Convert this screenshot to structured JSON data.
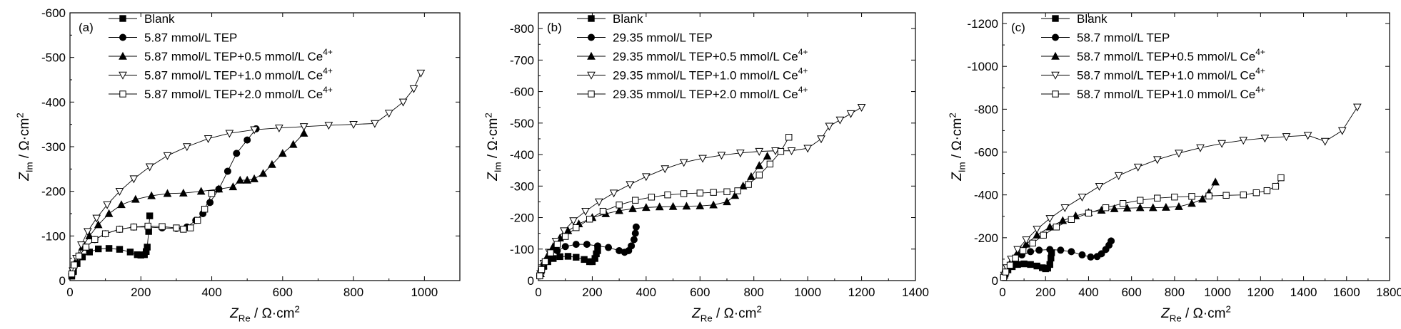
{
  "figure": {
    "panel_count": 3
  },
  "chart_data": [
    {
      "type": "scatter",
      "panel_label": "(a)",
      "xlabel": "Z",
      "xlabel_sub": "Re",
      "xlabel_unit": " / Ω·cm",
      "xlabel_sup": "2",
      "ylabel": "Z",
      "ylabel_sub": "Im",
      "ylabel_unit": " / Ω·cm",
      "ylabel_sup": "2",
      "xlim": [
        0,
        1100
      ],
      "ylim": [
        0,
        -600
      ],
      "xticks": [
        0,
        200,
        400,
        600,
        800,
        1000
      ],
      "yticks": [
        0,
        -100,
        -200,
        -300,
        -400,
        -500,
        -600
      ],
      "xtick_labels": [
        "0",
        "200",
        "400",
        "600",
        "800",
        "1000"
      ],
      "ytick_labels": [
        "0",
        "-100",
        "-200",
        "-300",
        "-400",
        "-500",
        "-600"
      ],
      "legend_position": "top-left",
      "series": [
        {
          "name": "Blank",
          "suffix_sup": "",
          "marker": "square-filled",
          "x": [
            5,
            10,
            20,
            35,
            55,
            80,
            110,
            140,
            170,
            190,
            200,
            210,
            215,
            218,
            222,
            225
          ],
          "y": [
            -10,
            -22,
            -38,
            -53,
            -64,
            -71,
            -72,
            -70,
            -64,
            -58,
            -57,
            -58,
            -65,
            -75,
            -110,
            -145
          ]
        },
        {
          "name": "5.87 mmol/L TEP",
          "suffix_sup": "",
          "marker": "circle-filled",
          "x": [
            5,
            12,
            25,
            45,
            70,
            100,
            140,
            180,
            220,
            260,
            300,
            330,
            355,
            375,
            395,
            420,
            445,
            470,
            500,
            525
          ],
          "y": [
            -15,
            -35,
            -55,
            -75,
            -92,
            -105,
            -115,
            -120,
            -120,
            -118,
            -117,
            -120,
            -135,
            -150,
            -175,
            -205,
            -245,
            -285,
            -315,
            -340
          ]
        },
        {
          "name": "5.87 mmol/L TEP+0.5 mmol/L Ce",
          "suffix_sup": "4+",
          "marker": "triangle-filled",
          "x": [
            8,
            18,
            35,
            55,
            80,
            110,
            145,
            185,
            230,
            275,
            320,
            370,
            420,
            460,
            480,
            500,
            520,
            545,
            570,
            600,
            630,
            660
          ],
          "y": [
            -20,
            -45,
            -75,
            -100,
            -125,
            -150,
            -170,
            -182,
            -190,
            -195,
            -196,
            -200,
            -205,
            -210,
            -225,
            -225,
            -228,
            -240,
            -260,
            -285,
            -305,
            -330
          ]
        },
        {
          "name": "5.87 mmol/L TEP+1.0 mmol/L Ce",
          "suffix_sup": "4+",
          "marker": "triangle-open",
          "x": [
            8,
            18,
            32,
            50,
            75,
            105,
            140,
            180,
            225,
            275,
            330,
            390,
            450,
            520,
            590,
            660,
            730,
            800,
            860,
            900,
            940,
            970,
            990
          ],
          "y": [
            -22,
            -50,
            -80,
            -110,
            -140,
            -170,
            -200,
            -228,
            -255,
            -280,
            -300,
            -318,
            -330,
            -338,
            -342,
            -345,
            -348,
            -350,
            -352,
            -375,
            -400,
            -430,
            -465
          ]
        },
        {
          "name": "5.87 mmol/L TEP+2.0 mmol/L Ce",
          "suffix_sup": "4+",
          "marker": "square-open",
          "x": [
            5,
            12,
            25,
            45,
            70,
            100,
            140,
            180,
            220,
            260,
            300,
            320,
            340,
            360,
            380,
            400
          ],
          "y": [
            -15,
            -35,
            -55,
            -75,
            -92,
            -105,
            -115,
            -120,
            -122,
            -121,
            -118,
            -115,
            -118,
            -135,
            -160,
            -195
          ]
        }
      ]
    },
    {
      "type": "scatter",
      "panel_label": "(b)",
      "xlabel": "Z",
      "xlabel_sub": "Re",
      "xlabel_unit": " / Ω·cm",
      "xlabel_sup": "2",
      "ylabel": "Z",
      "ylabel_sub": "Im",
      "ylabel_unit": " / Ω·cm",
      "ylabel_sup": "2",
      "xlim": [
        0,
        1400
      ],
      "ylim": [
        0,
        -850
      ],
      "xticks": [
        0,
        200,
        400,
        600,
        800,
        1000,
        1200,
        1400
      ],
      "yticks": [
        0,
        -100,
        -200,
        -300,
        -400,
        -500,
        -600,
        -700,
        -800
      ],
      "xtick_labels": [
        "0",
        "200",
        "400",
        "600",
        "800",
        "1000",
        "1200",
        "1400"
      ],
      "ytick_labels": [
        "0",
        "-100",
        "-200",
        "-300",
        "-400",
        "-500",
        "-600",
        "-700",
        "-800"
      ],
      "legend_position": "top-left",
      "series": [
        {
          "name": "Blank",
          "suffix_sup": "",
          "marker": "square-filled",
          "x": [
            5,
            10,
            20,
            35,
            55,
            80,
            110,
            140,
            170,
            190,
            200,
            210,
            215,
            220
          ],
          "y": [
            -15,
            -30,
            -45,
            -60,
            -70,
            -76,
            -77,
            -74,
            -67,
            -60,
            -60,
            -70,
            -85,
            -95
          ]
        },
        {
          "name": "29.35 mmol/L TEP",
          "suffix_sup": "",
          "marker": "circle-filled",
          "x": [
            5,
            12,
            25,
            45,
            70,
            100,
            140,
            180,
            220,
            260,
            300,
            320,
            335,
            345,
            355,
            360,
            363
          ],
          "y": [
            -15,
            -35,
            -60,
            -80,
            -95,
            -108,
            -115,
            -115,
            -110,
            -105,
            -95,
            -90,
            -95,
            -110,
            -130,
            -150,
            -170
          ]
        },
        {
          "name": "29.35 mmol/L TEP+0.5 mmol/L Ce",
          "suffix_sup": "4+",
          "marker": "triangle-filled",
          "x": [
            8,
            18,
            35,
            55,
            80,
            110,
            150,
            200,
            250,
            300,
            350,
            400,
            450,
            500,
            550,
            600,
            650,
            700,
            730,
            760,
            790,
            820,
            850
          ],
          "y": [
            -22,
            -48,
            -80,
            -108,
            -135,
            -158,
            -180,
            -200,
            -212,
            -222,
            -228,
            -232,
            -234,
            -235,
            -236,
            -237,
            -240,
            -250,
            -270,
            -300,
            -330,
            -365,
            -395
          ]
        },
        {
          "name": "29.35 mmol/L TEP+1.0 mmol/L Ce",
          "suffix_sup": "4+",
          "marker": "triangle-open",
          "x": [
            8,
            20,
            40,
            65,
            95,
            130,
            175,
            225,
            280,
            340,
            400,
            470,
            540,
            610,
            680,
            750,
            820,
            880,
            940,
            1000,
            1050,
            1080,
            1120,
            1160,
            1200
          ],
          "y": [
            -22,
            -55,
            -90,
            -125,
            -158,
            -190,
            -220,
            -250,
            -278,
            -305,
            -330,
            -355,
            -375,
            -388,
            -398,
            -405,
            -410,
            -412,
            -412,
            -420,
            -450,
            -490,
            -510,
            -530,
            -550
          ]
        },
        {
          "name": "29.35 mmol/L TEP+2.0 mmol/L Ce",
          "suffix_sup": "4+",
          "marker": "square-open",
          "x": [
            5,
            12,
            25,
            45,
            70,
            100,
            140,
            190,
            240,
            300,
            360,
            420,
            480,
            540,
            600,
            650,
            700,
            740,
            780,
            820,
            860,
            900,
            930
          ],
          "y": [
            -15,
            -35,
            -60,
            -88,
            -115,
            -140,
            -168,
            -195,
            -220,
            -240,
            -255,
            -265,
            -272,
            -276,
            -278,
            -280,
            -282,
            -285,
            -305,
            -335,
            -370,
            -410,
            -455
          ]
        }
      ]
    },
    {
      "type": "scatter",
      "panel_label": "(c)",
      "xlabel": "Z",
      "xlabel_sub": "Re",
      "xlabel_unit": " / Ω·cm",
      "xlabel_sup": "2",
      "ylabel": "Z",
      "ylabel_sub": "Im",
      "ylabel_unit": " / Ω·cm",
      "ylabel_sup": "2",
      "xlim": [
        0,
        1800
      ],
      "ylim": [
        0,
        -1250
      ],
      "xticks": [
        0,
        200,
        400,
        600,
        800,
        1000,
        1200,
        1400,
        1600,
        1800
      ],
      "yticks": [
        0,
        -200,
        -400,
        -600,
        -800,
        -1000,
        -1200
      ],
      "xtick_labels": [
        "0",
        "200",
        "400",
        "600",
        "800",
        "1000",
        "1200",
        "1400",
        "1600",
        "1800"
      ],
      "ytick_labels": [
        "0",
        "-200",
        "-400",
        "-600",
        "-800",
        "-1000",
        "-1200"
      ],
      "legend_position": "top-left",
      "series": [
        {
          "name": "Blank",
          "suffix_sup": "",
          "marker": "square-filled",
          "x": [
            5,
            12,
            25,
            45,
            70,
            100,
            130,
            160,
            185,
            200,
            210,
            220,
            225,
            228
          ],
          "y": [
            -15,
            -32,
            -50,
            -65,
            -75,
            -78,
            -75,
            -68,
            -60,
            -55,
            -58,
            -75,
            -105,
            -130
          ]
        },
        {
          "name": "58.7 mmol/L TEP",
          "suffix_sup": "",
          "marker": "circle-filled",
          "x": [
            5,
            15,
            35,
            60,
            90,
            130,
            170,
            220,
            270,
            320,
            370,
            410,
            440,
            460,
            480,
            495,
            505
          ],
          "y": [
            -15,
            -40,
            -70,
            -98,
            -120,
            -135,
            -142,
            -145,
            -142,
            -135,
            -120,
            -110,
            -112,
            -125,
            -145,
            -165,
            -185
          ]
        },
        {
          "name": "58.7 mmol/L TEP+0.5 mmol/L Ce",
          "suffix_sup": "4+",
          "marker": "triangle-filled",
          "x": [
            8,
            20,
            40,
            70,
            110,
            160,
            220,
            280,
            340,
            400,
            460,
            520,
            580,
            640,
            700,
            760,
            820,
            880,
            930,
            960,
            990
          ],
          "y": [
            -25,
            -55,
            -90,
            -128,
            -170,
            -212,
            -250,
            -280,
            -302,
            -318,
            -328,
            -335,
            -338,
            -340,
            -340,
            -342,
            -345,
            -360,
            -380,
            -410,
            -460
          ]
        },
        {
          "name": "58.7 mmol/L TEP+1.0 mmol/L Ce",
          "suffix_sup": "4+",
          "marker": "triangle-open",
          "x": [
            8,
            20,
            40,
            70,
            110,
            160,
            220,
            290,
            370,
            450,
            540,
            630,
            720,
            820,
            920,
            1020,
            1120,
            1220,
            1320,
            1420,
            1500,
            1580,
            1650
          ],
          "y": [
            -25,
            -60,
            -100,
            -145,
            -190,
            -240,
            -290,
            -340,
            -390,
            -440,
            -490,
            -530,
            -565,
            -595,
            -620,
            -640,
            -655,
            -665,
            -672,
            -678,
            -650,
            -700,
            -810
          ]
        },
        {
          "name": "58.7 mmol/L TEP+1.0 mmol/L Ce",
          "suffix_sup": "4+",
          "marker": "square-open",
          "x": [
            5,
            15,
            35,
            60,
            95,
            140,
            190,
            250,
            320,
            400,
            480,
            560,
            640,
            720,
            800,
            880,
            960,
            1040,
            1120,
            1180,
            1230,
            1270,
            1295
          ],
          "y": [
            -15,
            -40,
            -72,
            -105,
            -140,
            -175,
            -212,
            -250,
            -285,
            -315,
            -340,
            -360,
            -375,
            -385,
            -390,
            -393,
            -395,
            -398,
            -400,
            -410,
            -420,
            -440,
            -480
          ]
        }
      ]
    }
  ]
}
